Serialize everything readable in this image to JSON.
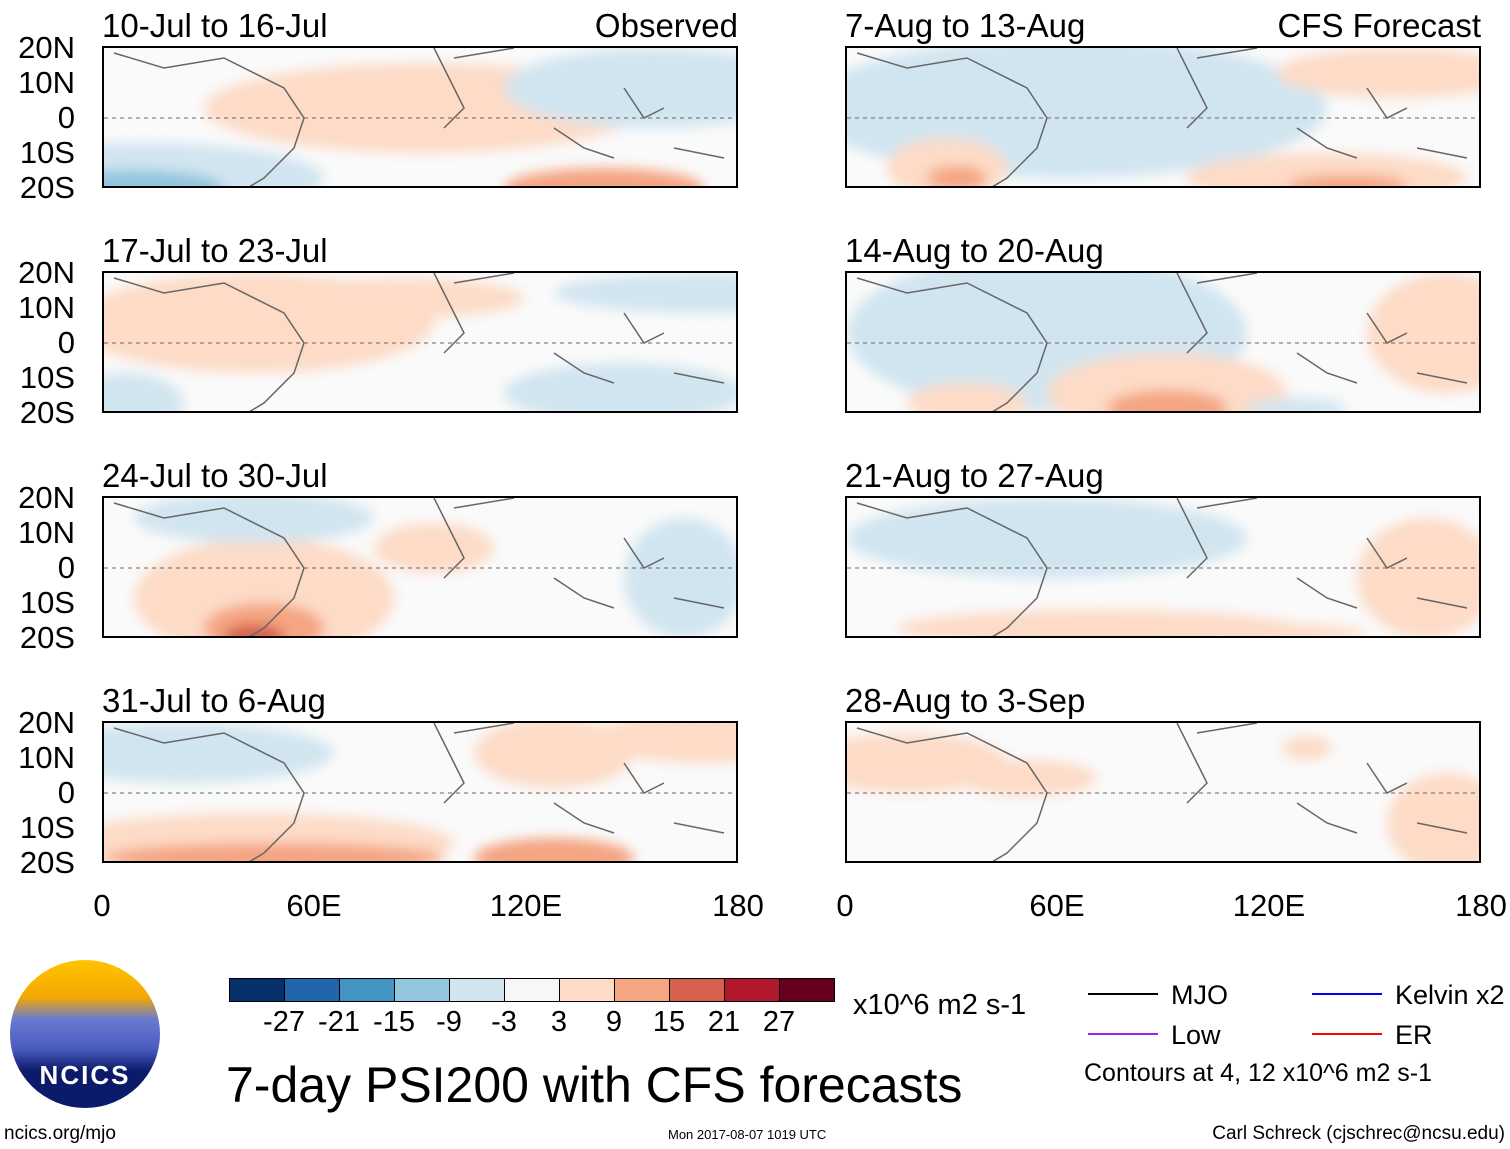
{
  "panels": [
    {
      "title": "10-Jul to 16-Jul",
      "label": "Observed"
    },
    {
      "title": "17-Jul to 23-Jul"
    },
    {
      "title": "24-Jul to 30-Jul"
    },
    {
      "title": "31-Jul to 6-Aug"
    },
    {
      "title": "7-Aug to 13-Aug",
      "label": "CFS Forecast"
    },
    {
      "title": "14-Aug to 20-Aug"
    },
    {
      "title": "21-Aug to 27-Aug"
    },
    {
      "title": "28-Aug to 3-Sep"
    }
  ],
  "lat_labels": [
    "20N",
    "10N",
    "0",
    "10S",
    "20S"
  ],
  "lon_labels": [
    "0",
    "60E",
    "120E",
    "180"
  ],
  "colorbar": {
    "colors": [
      "#08306b",
      "#2166ac",
      "#4393c3",
      "#92c5de",
      "#d1e5f0",
      "#f7f7f7",
      "#fddbc7",
      "#f4a582",
      "#d6604d",
      "#b2182b",
      "#67001f"
    ],
    "ticks": [
      "-27",
      "-21",
      "-15",
      "-9",
      "-3",
      "3",
      "9",
      "15",
      "21",
      "27"
    ],
    "units": "x10^6 m2 s-1"
  },
  "legend": {
    "items": [
      {
        "label": "MJO",
        "color": "#000000"
      },
      {
        "label": "Kelvin x2",
        "color": "#0000ff"
      },
      {
        "label": "Low",
        "color": "#a020f0"
      },
      {
        "label": "ER",
        "color": "#ff0000"
      }
    ],
    "contours": "Contours at 4, 12 x10^6 m2 s-1"
  },
  "title": "7-day PSI200 with CFS forecasts",
  "logo": "NCICS",
  "footer": {
    "url": "ncics.org/mjo",
    "timestamp": "Mon 2017-08-07 1019 UTC",
    "author": "Carl Schreck (cjschrec@ncsu.edu)"
  }
}
